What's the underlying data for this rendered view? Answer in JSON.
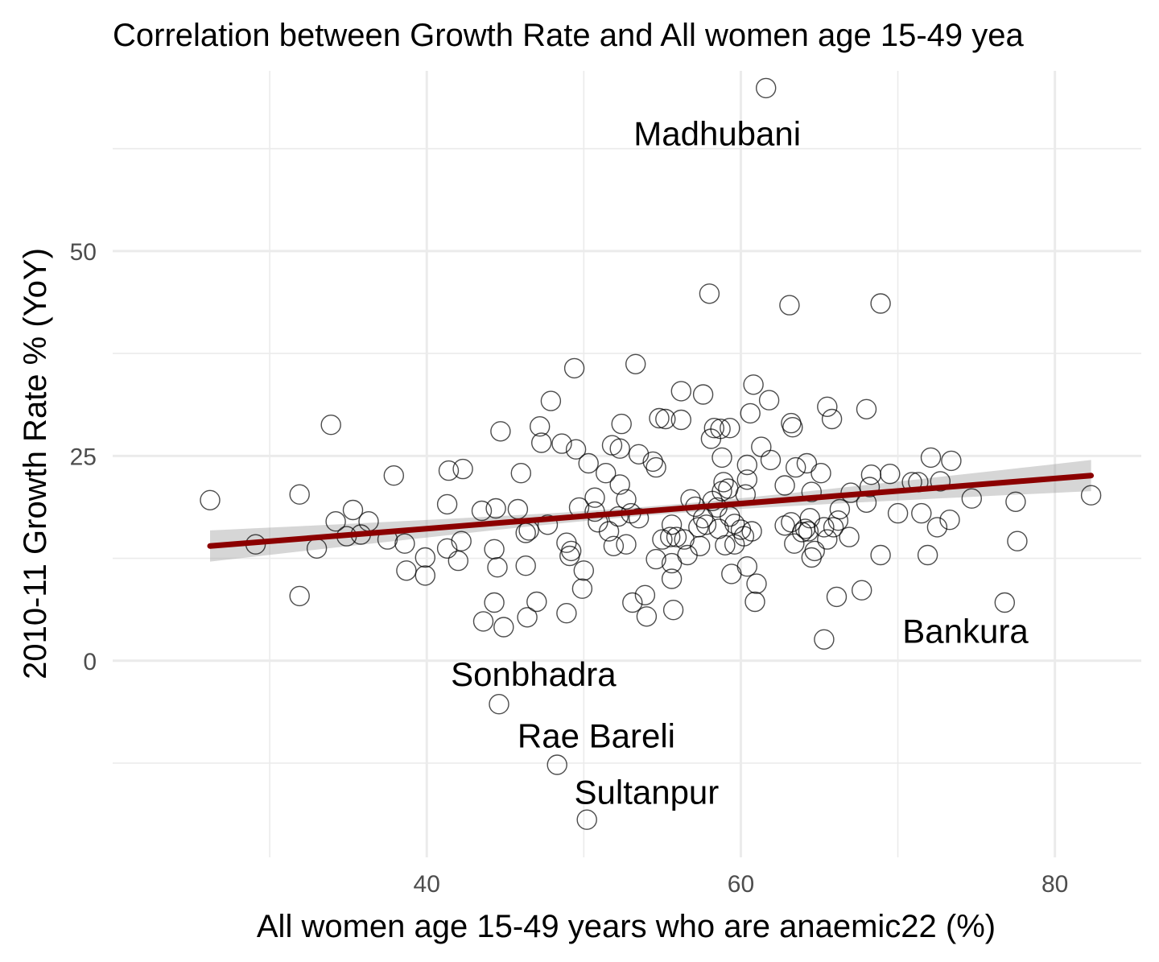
{
  "chart_data": {
    "type": "scatter",
    "title": "Correlation between Growth Rate and All women age 15-49 yea",
    "xlabel": "All women age 15-49 years who are anaemic22 (%)",
    "ylabel": "2010-11 Growth Rate % (YoY)",
    "xlim": [
      20,
      85.5
    ],
    "ylim": [
      -24,
      72
    ],
    "x_major_ticks": [
      40,
      60,
      80
    ],
    "x_minor_ticks": [
      30,
      50,
      70
    ],
    "y_major_ticks": [
      0,
      25,
      50
    ],
    "y_minor_ticks": [
      -12.5,
      12.5,
      37.5,
      62.5
    ],
    "grid": true,
    "legend": "none",
    "trend": {
      "x": [
        26.2,
        82.3
      ],
      "y": [
        14.0,
        22.6
      ],
      "se": 1.9,
      "color": "#8b0000"
    },
    "ribbon_color": "#999999",
    "points": [
      [
        26.2,
        19.6
      ],
      [
        29.1,
        14.2
      ],
      [
        31.9,
        20.3
      ],
      [
        31.9,
        7.9
      ],
      [
        33.0,
        13.7
      ],
      [
        33.9,
        28.8
      ],
      [
        34.2,
        17.0
      ],
      [
        34.9,
        15.2
      ],
      [
        35.3,
        18.4
      ],
      [
        35.8,
        15.4
      ],
      [
        36.3,
        17.0
      ],
      [
        37.5,
        14.8
      ],
      [
        37.9,
        22.6
      ],
      [
        38.6,
        14.3
      ],
      [
        38.7,
        11.0
      ],
      [
        39.9,
        12.6
      ],
      [
        39.9,
        10.4
      ],
      [
        41.3,
        19.1
      ],
      [
        41.3,
        13.7
      ],
      [
        41.4,
        23.2
      ],
      [
        42.0,
        12.2
      ],
      [
        42.2,
        14.6
      ],
      [
        42.3,
        23.4
      ],
      [
        43.5,
        18.3
      ],
      [
        43.6,
        4.8
      ],
      [
        44.3,
        7.1
      ],
      [
        44.3,
        13.6
      ],
      [
        44.4,
        18.6
      ],
      [
        44.5,
        11.4
      ],
      [
        44.7,
        28.0
      ],
      [
        44.9,
        4.1
      ],
      [
        45.8,
        18.5
      ],
      [
        46.0,
        22.9
      ],
      [
        46.3,
        15.6
      ],
      [
        46.3,
        11.6
      ],
      [
        46.4,
        5.3
      ],
      [
        46.5,
        15.9
      ],
      [
        47.0,
        7.2
      ],
      [
        47.2,
        28.6
      ],
      [
        47.3,
        26.6
      ],
      [
        47.7,
        16.6
      ],
      [
        47.9,
        31.7
      ],
      [
        48.6,
        26.5
      ],
      [
        48.9,
        14.4
      ],
      [
        48.9,
        5.8
      ],
      [
        49.1,
        12.8
      ],
      [
        49.2,
        13.4
      ],
      [
        49.4,
        35.7
      ],
      [
        49.5,
        25.8
      ],
      [
        49.7,
        18.7
      ],
      [
        49.9,
        8.8
      ],
      [
        50.0,
        11.0
      ],
      [
        50.3,
        24.1
      ],
      [
        50.7,
        18.2
      ],
      [
        50.7,
        19.9
      ],
      [
        50.9,
        16.9
      ],
      [
        51.4,
        22.9
      ],
      [
        51.6,
        15.8
      ],
      [
        51.8,
        26.3
      ],
      [
        51.9,
        14.0
      ],
      [
        52.2,
        17.6
      ],
      [
        52.3,
        21.5
      ],
      [
        52.3,
        25.9
      ],
      [
        52.4,
        28.9
      ],
      [
        52.7,
        14.2
      ],
      [
        52.7,
        19.7
      ],
      [
        53.0,
        18.0
      ],
      [
        53.1,
        7.1
      ],
      [
        53.3,
        36.2
      ],
      [
        53.5,
        25.2
      ],
      [
        53.5,
        17.4
      ],
      [
        53.9,
        8.0
      ],
      [
        54.0,
        5.4
      ],
      [
        54.4,
        24.3
      ],
      [
        54.6,
        23.6
      ],
      [
        54.6,
        12.4
      ],
      [
        54.8,
        29.6
      ],
      [
        55.0,
        14.8
      ],
      [
        55.2,
        29.5
      ],
      [
        55.5,
        15.1
      ],
      [
        55.6,
        11.9
      ],
      [
        55.6,
        10.0
      ],
      [
        55.6,
        16.6
      ],
      [
        55.7,
        6.2
      ],
      [
        55.9,
        15.1
      ],
      [
        56.2,
        29.4
      ],
      [
        56.2,
        32.9
      ],
      [
        56.4,
        14.8
      ],
      [
        56.6,
        12.9
      ],
      [
        56.8,
        19.7
      ],
      [
        57.1,
        18.8
      ],
      [
        57.3,
        16.3
      ],
      [
        57.4,
        14.0
      ],
      [
        57.6,
        17.4
      ],
      [
        57.6,
        32.5
      ],
      [
        57.8,
        16.6
      ],
      [
        58.0,
        44.8
      ],
      [
        58.1,
        27.1
      ],
      [
        58.2,
        19.5
      ],
      [
        58.3,
        28.4
      ],
      [
        58.5,
        18.7
      ],
      [
        58.6,
        16.1
      ],
      [
        58.7,
        28.3
      ],
      [
        58.8,
        24.8
      ],
      [
        58.8,
        20.7
      ],
      [
        58.9,
        21.8
      ],
      [
        59.0,
        14.1
      ],
      [
        59.2,
        21.0
      ],
      [
        59.3,
        17.6
      ],
      [
        59.3,
        28.4
      ],
      [
        59.4,
        10.6
      ],
      [
        59.6,
        14.2
      ],
      [
        59.6,
        16.7
      ],
      [
        60.0,
        16.0
      ],
      [
        60.2,
        15.2
      ],
      [
        60.3,
        20.3
      ],
      [
        60.4,
        23.9
      ],
      [
        60.4,
        22.1
      ],
      [
        60.4,
        11.5
      ],
      [
        60.6,
        30.2
      ],
      [
        60.7,
        15.8
      ],
      [
        60.8,
        33.7
      ],
      [
        60.9,
        7.2
      ],
      [
        61.0,
        9.4
      ],
      [
        61.3,
        26.1
      ],
      [
        61.6,
        69.9
      ],
      [
        61.8,
        31.8
      ],
      [
        61.9,
        24.5
      ],
      [
        62.8,
        16.5
      ],
      [
        62.8,
        21.4
      ],
      [
        63.1,
        43.4
      ],
      [
        63.2,
        16.9
      ],
      [
        63.2,
        29.0
      ],
      [
        63.3,
        28.5
      ],
      [
        63.4,
        14.3
      ],
      [
        63.5,
        23.6
      ],
      [
        63.9,
        15.7
      ],
      [
        64.1,
        16.1
      ],
      [
        64.2,
        24.1
      ],
      [
        64.3,
        15.8
      ],
      [
        64.4,
        17.4
      ],
      [
        64.5,
        20.6
      ],
      [
        64.5,
        12.6
      ],
      [
        64.7,
        13.4
      ],
      [
        65.1,
        22.9
      ],
      [
        65.3,
        2.6
      ],
      [
        65.3,
        16.3
      ],
      [
        65.5,
        31.0
      ],
      [
        65.5,
        14.8
      ],
      [
        65.8,
        29.5
      ],
      [
        65.9,
        16.3
      ],
      [
        66.1,
        7.8
      ],
      [
        66.2,
        17.1
      ],
      [
        66.3,
        18.5
      ],
      [
        66.9,
        15.1
      ],
      [
        67.0,
        20.5
      ],
      [
        67.7,
        8.6
      ],
      [
        68.0,
        30.7
      ],
      [
        68.0,
        19.3
      ],
      [
        68.2,
        21.2
      ],
      [
        68.3,
        22.7
      ],
      [
        68.9,
        12.9
      ],
      [
        68.9,
        43.6
      ],
      [
        69.5,
        22.8
      ],
      [
        70.0,
        18.0
      ],
      [
        70.9,
        21.8
      ],
      [
        71.3,
        21.8
      ],
      [
        71.5,
        18.0
      ],
      [
        71.9,
        12.9
      ],
      [
        72.1,
        24.8
      ],
      [
        72.5,
        16.3
      ],
      [
        72.7,
        21.9
      ],
      [
        73.3,
        17.2
      ],
      [
        73.4,
        24.4
      ],
      [
        74.7,
        19.8
      ],
      [
        76.8,
        7.1
      ],
      [
        77.5,
        19.4
      ],
      [
        77.6,
        14.6
      ],
      [
        82.3,
        20.2
      ],
      [
        44.6,
        -5.3
      ],
      [
        48.3,
        -12.7
      ],
      [
        50.2,
        -19.4
      ]
    ],
    "annotations": [
      {
        "label": "Madhubani",
        "x": 58.5,
        "y": 64.0
      },
      {
        "label": "Bankura",
        "x": 74.3,
        "y": 3.3
      },
      {
        "label": "Sonbhadra",
        "x": 46.8,
        "y": -2.0
      },
      {
        "label": "Rae Bareli",
        "x": 50.8,
        "y": -9.5
      },
      {
        "label": "Sultanpur",
        "x": 54.0,
        "y": -16.4
      }
    ]
  }
}
